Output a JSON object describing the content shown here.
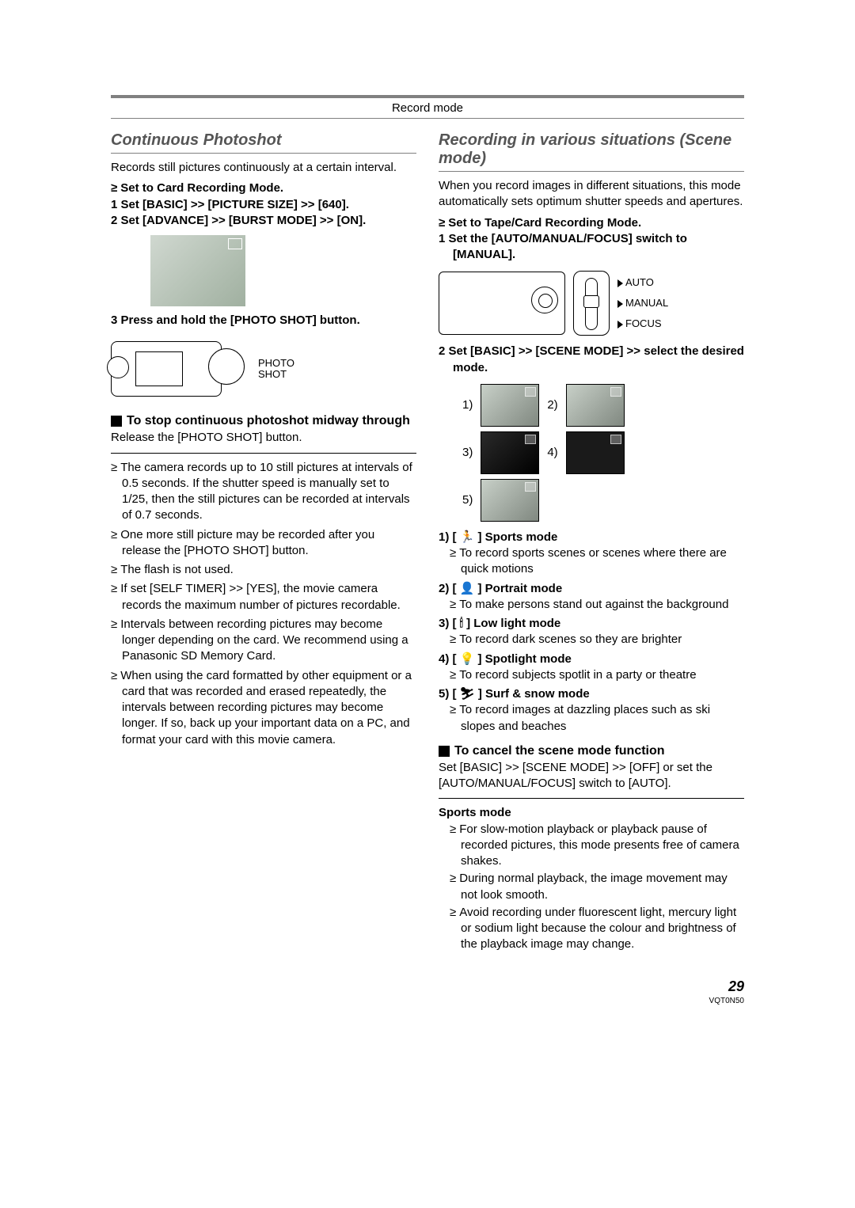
{
  "header": {
    "title": "Record mode"
  },
  "left": {
    "title": "Continuous Photoshot",
    "intro": "Records still pictures continuously at a certain interval.",
    "pre_bullet": "Set to Card Recording Mode.",
    "step1": "1  Set [BASIC] >> [PICTURE SIZE] >> [640].",
    "step2": "2  Set [ADVANCE] >> [BURST MODE] >> [ON].",
    "step3": "3  Press and hold the [PHOTO SHOT] button.",
    "camera_label1": "PHOTO",
    "camera_label2": "SHOT",
    "sub1": "To stop continuous photoshot midway through",
    "sub1_body": "Release the [PHOTO SHOT] button.",
    "notes": [
      "The camera records up to 10 still pictures at intervals of 0.5 seconds. If the shutter speed is manually set to 1/25, then the still pictures can be recorded at intervals of 0.7 seconds.",
      "One more still picture may be recorded after you release the [PHOTO SHOT] button.",
      "The flash is not used.",
      "If set [SELF TIMER] >> [YES], the movie camera records the maximum number of pictures recordable.",
      "Intervals between recording pictures may become longer depending on the card. We recommend using a Panasonic SD Memory Card.",
      "When using the card formatted by other equipment or a card that was recorded and erased repeatedly, the intervals between recording pictures may become longer. If so, back up your important data on a PC, and format your card with this movie camera."
    ]
  },
  "right": {
    "title": "Recording in various situations (Scene mode)",
    "intro": "When you record images in different situations, this mode automatically sets optimum shutter speeds and apertures.",
    "pre_bullet": "Set to Tape/Card Recording Mode.",
    "step1": "1  Set the [AUTO/MANUAL/FOCUS] switch to [MANUAL].",
    "switch_labels": [
      "AUTO",
      "MANUAL",
      "FOCUS"
    ],
    "step2": "2  Set [BASIC] >> [SCENE MODE] >> select the desired mode.",
    "scene_nums": [
      "1)",
      "2)",
      "3)",
      "4)",
      "5)"
    ],
    "modes": [
      {
        "head": "1)   [ 🏃 ] Sports mode",
        "desc": "To record sports scenes or scenes where there are quick motions"
      },
      {
        "head": "2)   [ 👤 ] Portrait mode",
        "desc": "To make persons stand out against the background"
      },
      {
        "head": "3)   [ 🕯 ] Low light mode",
        "desc": "To record dark scenes so they are brighter"
      },
      {
        "head": "4)   [ 💡 ] Spotlight mode",
        "desc": "To record subjects spotlit in a party or theatre"
      },
      {
        "head": "5)   [ ⛷ ] Surf & snow mode",
        "desc": "To record images at dazzling places such as ski slopes and beaches"
      }
    ],
    "sub1": "To cancel the scene mode function",
    "sub1_body": "Set [BASIC] >> [SCENE MODE] >> [OFF] or set the [AUTO/MANUAL/FOCUS] switch to [AUTO].",
    "sports_head": "Sports mode",
    "sports_notes": [
      "For slow-motion playback or playback pause of recorded pictures, this mode presents free of camera shakes.",
      "During normal playback, the image movement may not look smooth.",
      "Avoid recording under fluorescent light, mercury light or sodium light because the colour and brightness of the playback image may change."
    ]
  },
  "footer": {
    "page": "29",
    "code": "VQT0N50"
  },
  "colors": {
    "rule": "#808080",
    "title": "#555555"
  }
}
